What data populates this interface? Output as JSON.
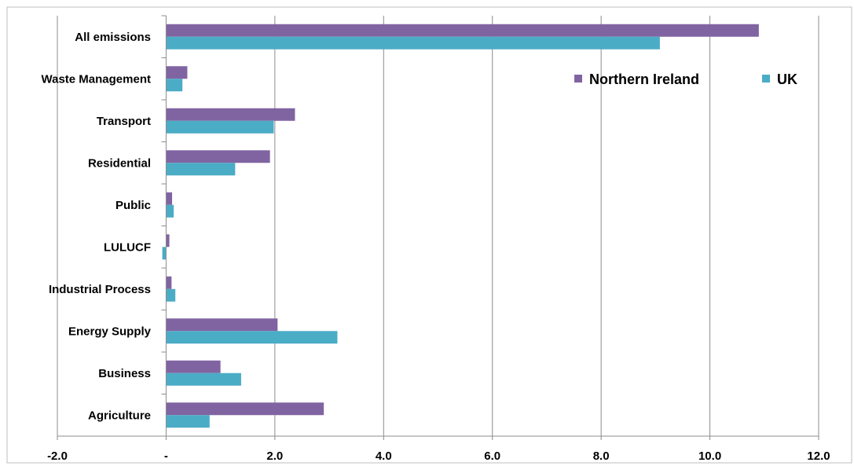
{
  "chart_data": {
    "type": "bar",
    "orientation": "horizontal",
    "categories": [
      "Agriculture",
      "Business",
      "Energy Supply",
      "Industrial Process",
      "LULUCF",
      "Public",
      "Residential",
      "Transport",
      "Waste Management",
      "All emissions"
    ],
    "series": [
      {
        "name": "Northern Ireland",
        "color": "#8064a2",
        "values": [
          2.9,
          1.0,
          2.05,
          0.1,
          0.06,
          0.11,
          1.91,
          2.37,
          0.39,
          10.9
        ]
      },
      {
        "name": "UK",
        "color": "#4bacc6",
        "values": [
          0.8,
          1.38,
          3.15,
          0.17,
          -0.07,
          0.14,
          1.27,
          1.98,
          0.3,
          9.08
        ]
      }
    ],
    "xlim": [
      -2.0,
      12.0
    ],
    "ticks": [
      {
        "value": -2.0,
        "label": "-2.0"
      },
      {
        "value": 0.0,
        "label": "-"
      },
      {
        "value": 2.0,
        "label": "2.0"
      },
      {
        "value": 4.0,
        "label": "4.0"
      },
      {
        "value": 6.0,
        "label": "6.0"
      },
      {
        "value": 8.0,
        "label": "8.0"
      },
      {
        "value": 10.0,
        "label": "10.0"
      },
      {
        "value": 12.0,
        "label": "12.0"
      }
    ],
    "grid": true,
    "legend_position": "top-right"
  }
}
